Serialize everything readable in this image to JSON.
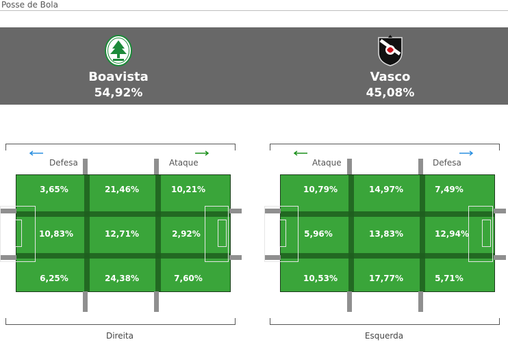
{
  "page_title": "Posse de Bola",
  "teams": [
    {
      "name": "Boavista",
      "possession": "54,92%",
      "crest_icon": "boavista-crest-icon"
    },
    {
      "name": "Vasco",
      "possession": "45,08%",
      "crest_icon": "vasco-crest-icon"
    }
  ],
  "pitches": [
    {
      "left_label": "Defesa",
      "right_label": "Ataque",
      "bottom_label": "Direita",
      "left_arrow_color": "#2a8fe0",
      "right_arrow_color": "#1a8f1a",
      "zones": [
        [
          "3,65%",
          "21,46%",
          "10,21%"
        ],
        [
          "10,83%",
          "12,71%",
          "2,92%"
        ],
        [
          "6,25%",
          "24,38%",
          "7,60%"
        ]
      ]
    },
    {
      "left_label": "Ataque",
      "right_label": "Defesa",
      "bottom_label": "Esquerda",
      "left_arrow_color": "#1a8f1a",
      "right_arrow_color": "#2a8fe0",
      "zones": [
        [
          "10,79%",
          "14,97%",
          "7,49%"
        ],
        [
          "5,96%",
          "13,83%",
          "12,94%"
        ],
        [
          "10,53%",
          "17,77%",
          "5,71%"
        ]
      ]
    }
  ]
}
